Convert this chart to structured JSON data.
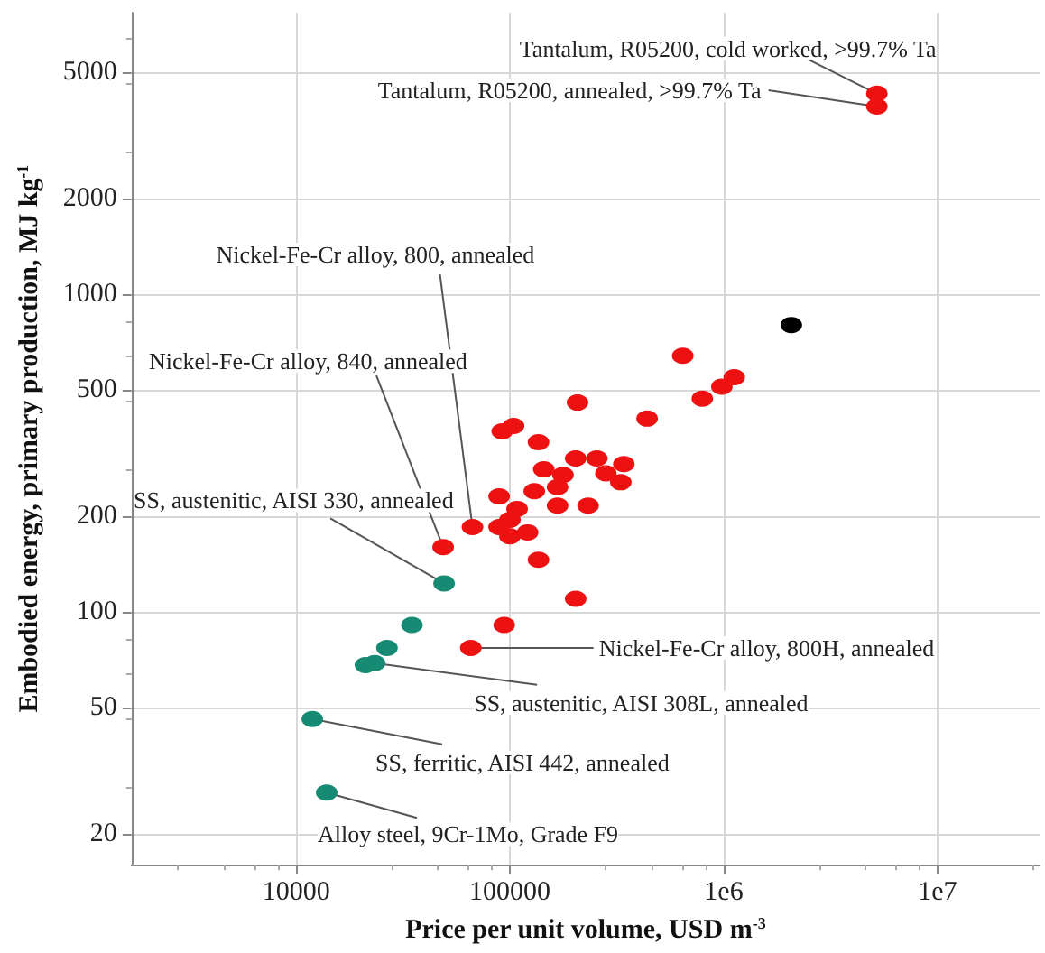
{
  "chart_data": {
    "type": "scatter",
    "xlabel": "Price per unit volume, USD m$^{-3}$",
    "ylabel": "Embodied energy, primary production, MJ kg$^{-1}$",
    "log": "xy",
    "grid": true,
    "marker": "circle",
    "xlim": [
      1700,
      30000000
    ],
    "ylim": [
      16,
      7700
    ],
    "xticks": [
      10000,
      100000,
      {
        "value": 1000000,
        "label": "1e6"
      },
      {
        "value": 10000000,
        "label": "1e7"
      }
    ],
    "yticks": [
      20,
      50,
      100,
      200,
      500,
      1000,
      2000,
      5000
    ],
    "series": [
      {
        "color": "#ee1111",
        "x": [
          5200000,
          5200000,
          643000,
          1120000,
          980000,
          794000,
          438000,
          207000,
          104000,
          92000,
          136000,
          203000,
          255000,
          341000,
          144000,
          330000,
          167000,
          130000,
          232000,
          167000,
          89000,
          108000,
          100000,
          89000,
          100000,
          121000,
          66800,
          136000,
          203000,
          94000,
          65600,
          48700,
          281000,
          177000
        ],
        "values": [
          4280,
          3900,
          640,
          548,
          512,
          469,
          406,
          456,
          385,
          370,
          342,
          304,
          304,
          292,
          281,
          256,
          247,
          240,
          216,
          216,
          231,
          211,
          195,
          185,
          173,
          178,
          185,
          146,
          110,
          91,
          77,
          160,
          273,
          270
        ]
      },
      {
        "color": "#168a72",
        "x": [
          49200,
          34800,
          26600,
          23300,
          21100,
          11900,
          13900
        ],
        "values": [
          123,
          91,
          77,
          69,
          68,
          46,
          27
        ]
      },
      {
        "color": "#000000",
        "x": [
          2070000
        ],
        "values": [
          800
        ]
      }
    ],
    "annotations": [
      {
        "text": "Tantalum, R05200, cold worked, >99.7% Ta",
        "x": 5200000,
        "y": 4280
      },
      {
        "text": "Tantalum, R05200, annealed, >99.7% Ta",
        "x": 5200000,
        "y": 3900
      },
      {
        "text": "Nickel-Fe-Cr alloy, 800, annealed",
        "x": 66800,
        "y": 185
      },
      {
        "text": "Nickel-Fe-Cr alloy, 840, annealed",
        "x": 48700,
        "y": 160
      },
      {
        "text": "SS, austenitic, AISI 330, annealed",
        "x": 49200,
        "y": 123
      },
      {
        "text": "Nickel-Fe-Cr alloy, 800H, annealed",
        "x": 65600,
        "y": 77
      },
      {
        "text": "SS, austenitic, AISI 308L, annealed",
        "x": 23300,
        "y": 69
      },
      {
        "text": "SS, ferritic, AISI 442, annealed",
        "x": 11900,
        "y": 46
      },
      {
        "text": "Alloy steel, 9Cr-1Mo, Grade F9",
        "x": 13900,
        "y": 27
      }
    ]
  }
}
